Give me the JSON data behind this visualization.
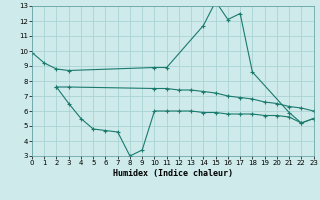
{
  "xlabel": "Humidex (Indice chaleur)",
  "bg_color": "#ceeaea",
  "grid_color": "#aad4d4",
  "line_color": "#1a7a6e",
  "xlim": [
    0,
    23
  ],
  "ylim": [
    3,
    13
  ],
  "xticks": [
    0,
    1,
    2,
    3,
    4,
    5,
    6,
    7,
    8,
    9,
    10,
    11,
    12,
    13,
    14,
    15,
    16,
    17,
    18,
    19,
    20,
    21,
    22,
    23
  ],
  "yticks": [
    3,
    4,
    5,
    6,
    7,
    8,
    9,
    10,
    11,
    12,
    13
  ],
  "line1_x": [
    0,
    1,
    2,
    3,
    10,
    11,
    14,
    15,
    16,
    17,
    18,
    21,
    22,
    23
  ],
  "line1_y": [
    9.9,
    9.2,
    8.8,
    8.7,
    8.9,
    8.9,
    11.7,
    13.3,
    12.1,
    12.5,
    8.6,
    5.9,
    5.2,
    5.5
  ],
  "line2_x": [
    2,
    3,
    10,
    11,
    12,
    13,
    14,
    15,
    16,
    17,
    18,
    19,
    20,
    21,
    22,
    23
  ],
  "line2_y": [
    7.6,
    7.6,
    7.5,
    7.5,
    7.4,
    7.4,
    7.3,
    7.2,
    7.0,
    6.9,
    6.8,
    6.6,
    6.5,
    6.3,
    6.2,
    6.0
  ],
  "line3_x": [
    2,
    3,
    4,
    5,
    6,
    7,
    8,
    9,
    10,
    11,
    12,
    13,
    14,
    15,
    16,
    17,
    18,
    19,
    20,
    21,
    22,
    23
  ],
  "line3_y": [
    7.6,
    6.5,
    5.5,
    4.8,
    4.7,
    4.6,
    3.0,
    3.4,
    6.0,
    6.0,
    6.0,
    6.0,
    5.9,
    5.9,
    5.8,
    5.8,
    5.8,
    5.7,
    5.7,
    5.6,
    5.2,
    5.5
  ]
}
